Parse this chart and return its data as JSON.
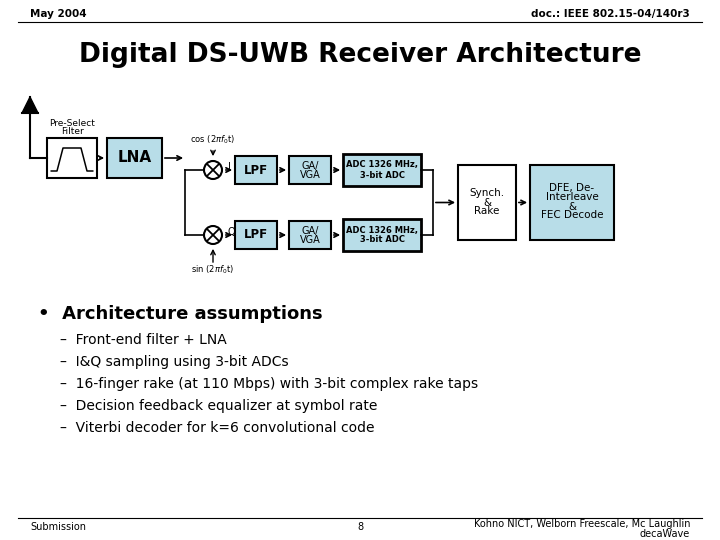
{
  "title": "Digital DS-UWB Receiver Architecture",
  "header_left": "May 2004",
  "header_right": "doc.: IEEE 802.15-04/140r3",
  "footer_left": "Submission",
  "footer_center": "8",
  "footer_right": "Kohno NICT, Welborn Freescale, Mc Laughlin\ndecaWave",
  "bullet_title": "Architecture assumptions",
  "bullets": [
    "Front-end filter + LNA",
    "I&Q sampling using 3-bit ADCs",
    "16-finger rake (at 110 Mbps) with 3-bit complex rake taps",
    "Decision feedback equalizer at symbol rate",
    "Viterbi decoder for k=6 convolutional code"
  ],
  "light_blue": "#b8dde8",
  "bg_color": "#ffffff",
  "text_color": "#000000"
}
